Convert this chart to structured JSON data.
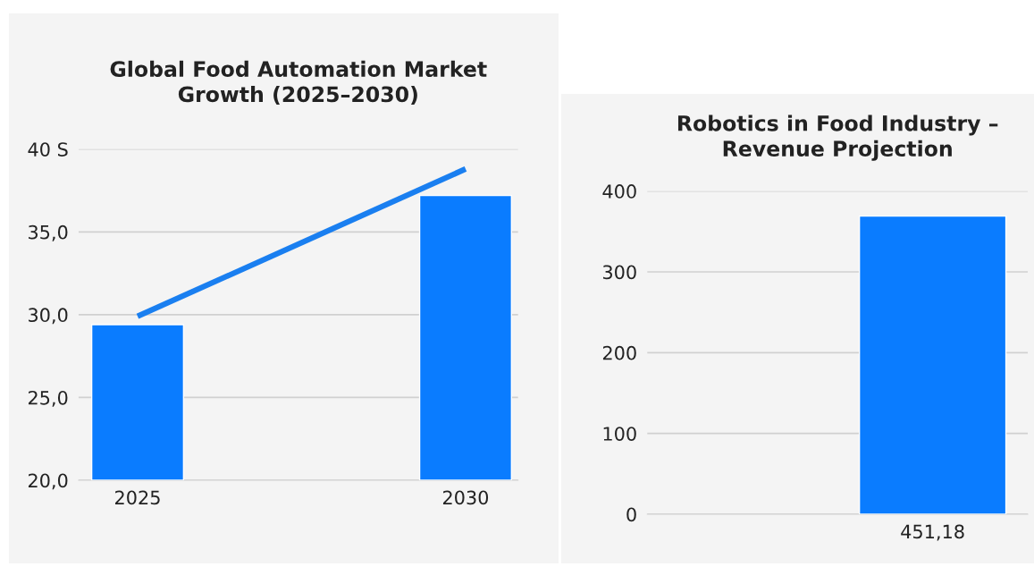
{
  "chart_data": [
    {
      "type": "bar",
      "title": "Global Food Automation Market\nGrowth (2025–2030)",
      "categories": [
        "2025",
        "2030"
      ],
      "series": [
        {
          "type": "bar",
          "color": "#0a7cff",
          "values": [
            29.4,
            37.2
          ]
        },
        {
          "type": "line",
          "color": "#1a7ff0",
          "values": [
            29.9,
            38.8
          ]
        }
      ],
      "ylim": [
        20,
        40
      ],
      "yticks": [
        {
          "value": 20,
          "label": "20,0"
        },
        {
          "value": 25,
          "label": "25,0"
        },
        {
          "value": 30,
          "label": "30,0"
        },
        {
          "value": 35,
          "label": "35,0"
        },
        {
          "value": 40,
          "label": "40 S"
        }
      ],
      "grid": "y",
      "legend": false
    },
    {
      "type": "bar",
      "title": "Robotics in Food Industry –\nRevenue Projection",
      "categories": [
        null,
        "451,18"
      ],
      "values": [
        null,
        369
      ],
      "color": "#0a7cff",
      "ylim": [
        0,
        400
      ],
      "yticks": [
        0,
        100,
        200,
        300,
        400
      ],
      "grid": "y",
      "legend": false
    }
  ]
}
